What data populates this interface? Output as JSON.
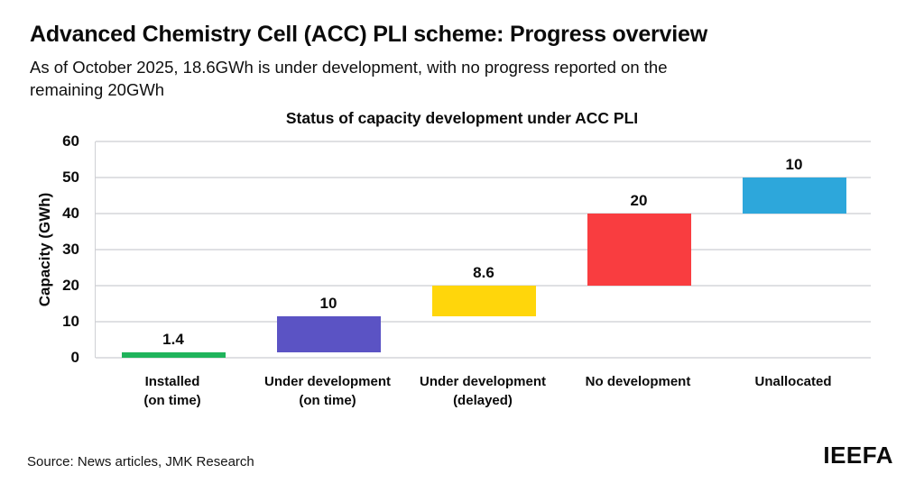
{
  "header": {
    "title": "Advanced Chemistry Cell (ACC) PLI scheme: Progress overview",
    "subtitle_lines": [
      "As of October 2025, 18.6GWh is under development, with no progress reported on the",
      "remaining 20GWh"
    ]
  },
  "footer": {
    "source": "Source: News articles, JMK Research",
    "logo": "IEEFA"
  },
  "chart_data": {
    "type": "bar",
    "subtype": "waterfall",
    "title": "Status of capacity development under ACC PLI",
    "xlabel": "",
    "ylabel": "Capacity (GWh)",
    "ylim": [
      0,
      60
    ],
    "yticks": [
      0,
      10,
      20,
      30,
      40,
      50,
      60
    ],
    "grid": true,
    "legend": "none",
    "categories": [
      "Installed\n(on time)",
      "Under development\n(on time)",
      "Under development\n(delayed)",
      "No development",
      "Unallocated"
    ],
    "values": [
      1.4,
      10,
      8.6,
      20,
      10
    ],
    "bases": [
      0,
      1.4,
      11.4,
      20,
      40
    ],
    "data_labels": [
      "1.4",
      "10",
      "8.6",
      "20",
      "10"
    ],
    "colors": [
      "#1fb35b",
      "#5b53c4",
      "#ffd60b",
      "#f93d40",
      "#2da7db"
    ]
  }
}
